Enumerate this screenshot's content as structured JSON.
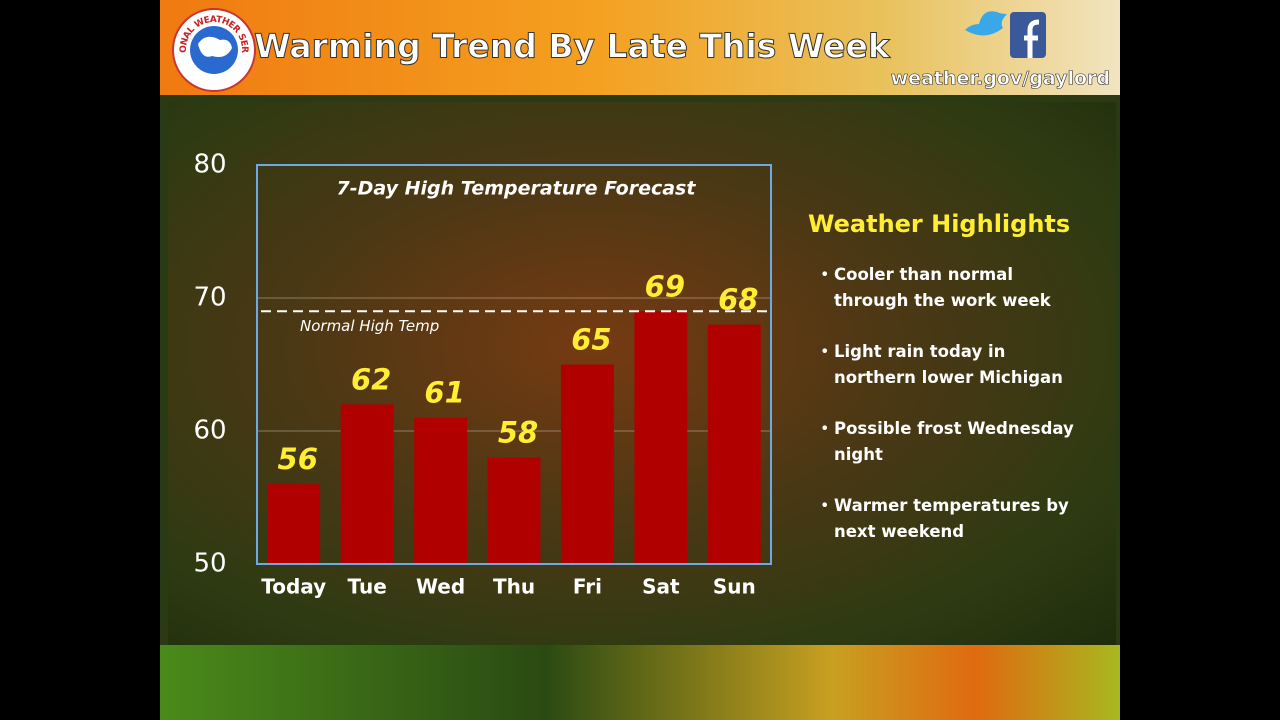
{
  "header": {
    "title": "Warming Trend By Late This Week",
    "website": "weather.gov/gaylord",
    "logo_text": "NATIONAL WEATHER SERVICE"
  },
  "chart_data": {
    "type": "bar",
    "title": "7-Day High Temperature Forecast",
    "categories": [
      "Today",
      "Tue",
      "Wed",
      "Thu",
      "Fri",
      "Sat",
      "Sun"
    ],
    "values": [
      56,
      62,
      61,
      58,
      65,
      69,
      68
    ],
    "color": "#b00000",
    "label_color": "#ffee33",
    "ylim": [
      50,
      80
    ],
    "yticks": [
      50,
      60,
      70,
      80
    ],
    "grid": true,
    "reference_line": {
      "value": 69,
      "label": "Normal High Temp"
    }
  },
  "highlights": {
    "title": "Weather Highlights",
    "items": [
      "Cooler than normal through the work week",
      "Light rain today in northern lower Michigan",
      "Possible frost Wednesday night",
      "Warmer temperatures by next weekend"
    ]
  }
}
